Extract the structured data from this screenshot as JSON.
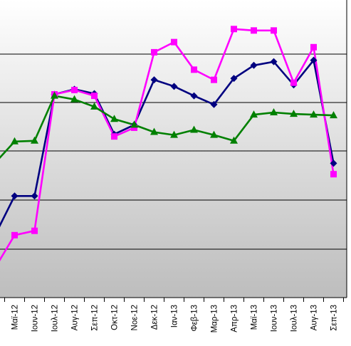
{
  "chart_data": {
    "type": "line",
    "title": "",
    "xlabel": "",
    "ylabel": "",
    "categories": [
      "Μαϊ-12",
      "Ιουν-12",
      "Ιουλ-12",
      "Αυγ-12",
      "Σεπ-12",
      "Οκτ-12",
      "Νοε-12",
      "Δεκ-12",
      "Ιαν-13",
      "Φεβ-13",
      "Μαρ-13",
      "Απρ-13",
      "Μαϊ-13",
      "Ιουν-13",
      "Ιουλ-13",
      "Αυγ-13",
      "Σεπ-13"
    ],
    "grid": true,
    "legend": "none",
    "series": [
      {
        "color": "#000080",
        "marker": "diamond",
        "values_before_first_category": [
          2.85
        ],
        "values": [
          3.4,
          3.4,
          4.8,
          4.87,
          4.81,
          4.25,
          4.38,
          5.0,
          4.91,
          4.78,
          4.66,
          5.02,
          5.2,
          5.25,
          4.93,
          5.27,
          3.85
        ]
      },
      {
        "color": "#ff00ff",
        "marker": "square",
        "values_before_first_category": [
          2.4
        ],
        "values": [
          2.86,
          2.92,
          4.8,
          4.86,
          4.78,
          4.22,
          4.34,
          5.38,
          5.52,
          5.14,
          5.0,
          5.7,
          5.68,
          5.68,
          4.96,
          5.45,
          3.7
        ]
      },
      {
        "color": "#008000",
        "marker": "triangle",
        "values_before_first_category": [
          3.85
        ],
        "values": [
          4.15,
          4.16,
          4.78,
          4.73,
          4.63,
          4.46,
          4.38,
          4.28,
          4.24,
          4.31,
          4.24,
          4.16,
          4.52,
          4.55,
          4.53,
          4.52,
          4.51
        ]
      }
    ]
  }
}
